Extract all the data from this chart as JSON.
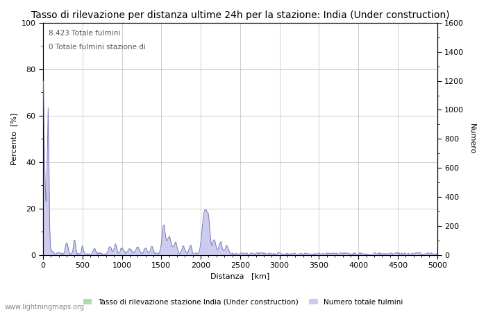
{
  "title": "Tasso di rilevazione per distanza ultime 24h per la stazione: India (Under construction)",
  "xlabel": "Distanza   [km]",
  "ylabel_left": "Percento  [%]",
  "ylabel_right": "Numero",
  "annotation_line1": "8.423 Totale fulmini",
  "annotation_line2": "0 Totale fulmini stazione di",
  "legend_green": "Tasso di rilevazione stazione India (Under construction)",
  "legend_blue": "Numero totale fulmini",
  "watermark": "www.lightningmaps.org",
  "xlim": [
    0,
    5000
  ],
  "ylim_left": [
    0,
    100
  ],
  "ylim_right": [
    0,
    1600
  ],
  "xticks": [
    0,
    500,
    1000,
    1500,
    2000,
    2500,
    3000,
    3500,
    4000,
    4500,
    5000
  ],
  "yticks_left": [
    0,
    20,
    40,
    60,
    80,
    100
  ],
  "yticks_right": [
    0,
    200,
    400,
    600,
    800,
    1000,
    1200,
    1400,
    1600
  ],
  "bar_color_green": "#aaddaa",
  "line_color_blue": "#7777bb",
  "fill_color_blue": "#ccccee",
  "grid_color": "#bbbbbb",
  "background_color": "#ffffff",
  "title_fontsize": 10,
  "axis_fontsize": 8,
  "tick_fontsize": 8,
  "minor_tick_color": "#999999"
}
